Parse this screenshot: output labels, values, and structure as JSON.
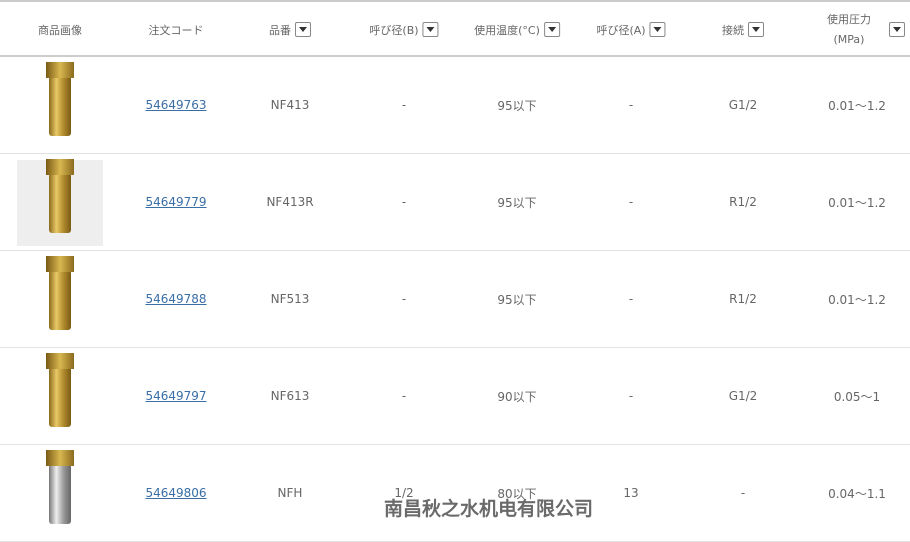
{
  "headers": [
    "商品画像",
    "注文コード",
    "品番",
    "呼び径(B)",
    "使用温度(°C)",
    "呼び径(A)",
    "接続",
    "使用圧力",
    "(MPa)"
  ],
  "rows": [
    {
      "code": "54649763",
      "part": "NF413",
      "b": "-",
      "temp": "95以下",
      "a": "-",
      "conn": "G1/2",
      "press": "0.01～1.2"
    },
    {
      "code": "54649779",
      "part": "NF413R",
      "b": "-",
      "temp": "95以下",
      "a": "-",
      "conn": "R1/2",
      "press": "0.01～1.2"
    },
    {
      "code": "54649788",
      "part": "NF513",
      "b": "-",
      "temp": "95以下",
      "a": "-",
      "conn": "R1/2",
      "press": "0.01～1.2"
    },
    {
      "code": "54649797",
      "part": "NF613",
      "b": "-",
      "temp": "90以下",
      "a": "-",
      "conn": "G1/2",
      "press": "0.05～1"
    },
    {
      "code": "54649806",
      "part": "NFH",
      "b": "1/2",
      "temp": "80以下",
      "a": "13",
      "conn": "-",
      "press": "0.04～1.1"
    }
  ],
  "watermark": "南昌秋之水机电有限公司",
  "colors": {
    "link": "#3a6ea5",
    "brass": "#d8b850"
  }
}
